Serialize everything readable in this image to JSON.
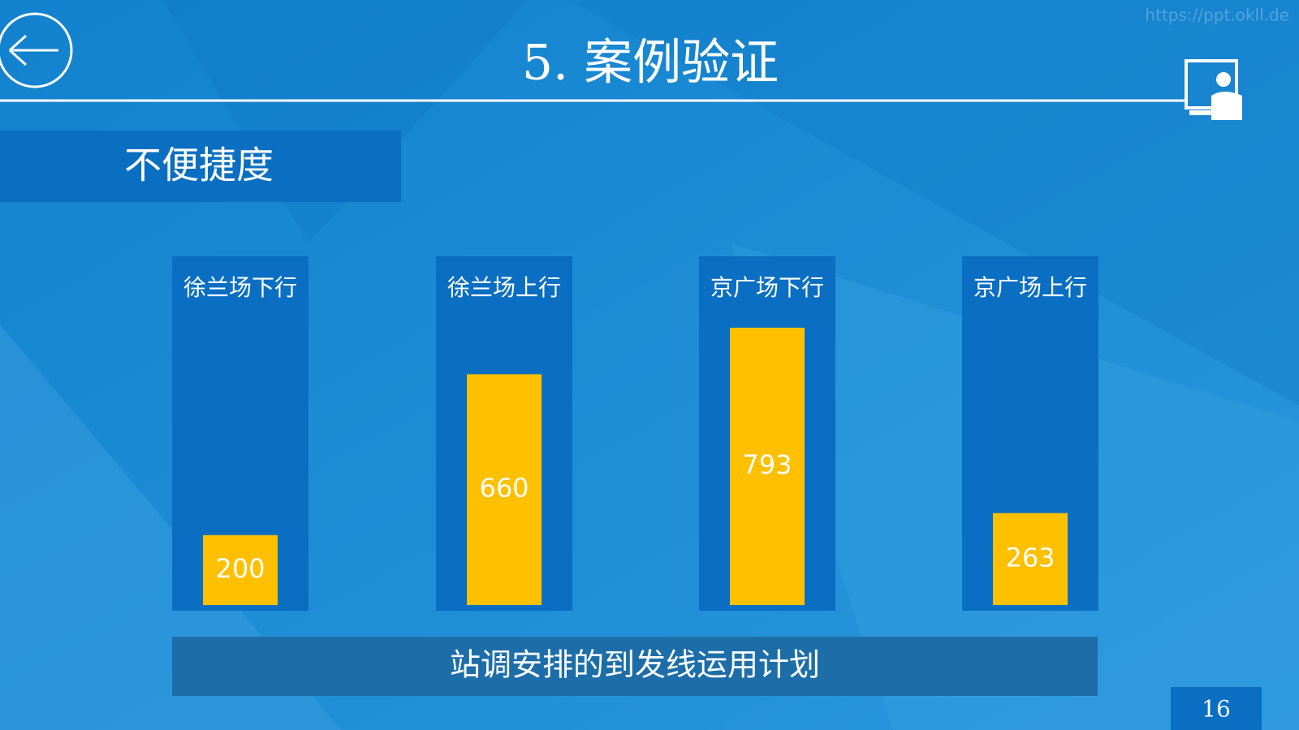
{
  "header": {
    "title": "5.  案例验证",
    "watermark": "https://ppt.okll.de"
  },
  "section": "不便捷度",
  "chart_data": {
    "type": "bar",
    "categories": [
      "徐兰场下行",
      "徐兰场上行",
      "京广场下行",
      "京广场上行"
    ],
    "values": [
      200,
      660,
      793,
      263
    ],
    "color": "#ffc000",
    "caption": "站调安排的到发线运用计划"
  },
  "page_number": "16"
}
